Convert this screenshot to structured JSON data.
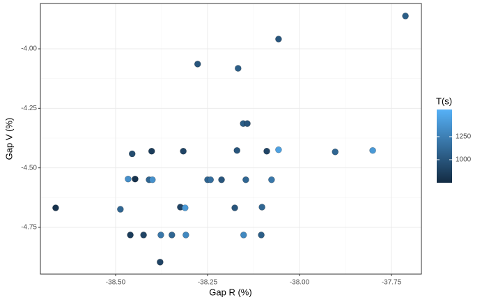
{
  "chart_data": {
    "type": "scatter",
    "x_label": "Gap R (%)",
    "y_label": "Gap V (%)",
    "x": [
      -37.712,
      -38.057,
      -38.277,
      -38.167,
      -38.153,
      -38.142,
      -38.455,
      -38.402,
      -38.316,
      -38.17,
      -38.089,
      -38.057,
      -37.903,
      -37.801,
      -38.466,
      -38.447,
      -38.409,
      -38.4,
      -38.25,
      -38.242,
      -38.212,
      -38.146,
      -38.076,
      -38.663,
      -38.487,
      -38.324,
      -38.311,
      -38.176,
      -38.102,
      -38.46,
      -38.424,
      -38.377,
      -38.347,
      -38.309,
      -38.152,
      -38.104,
      -38.379
    ],
    "values": [
      -3.862,
      -3.959,
      -4.064,
      -4.082,
      -4.314,
      -4.314,
      -4.441,
      -4.43,
      -4.43,
      -4.427,
      -4.43,
      -4.424,
      -4.433,
      -4.427,
      -4.547,
      -4.547,
      -4.55,
      -4.55,
      -4.55,
      -4.55,
      -4.55,
      -4.55,
      -4.55,
      -4.668,
      -4.674,
      -4.665,
      -4.668,
      -4.668,
      -4.665,
      -4.782,
      -4.782,
      -4.782,
      -4.782,
      -4.782,
      -4.782,
      -4.782,
      -4.896
    ],
    "color_values": [
      1050,
      1000,
      1000,
      1050,
      1050,
      1000,
      950,
      850,
      900,
      1000,
      900,
      1450,
      1100,
      1400,
      1350,
      800,
      1100,
      1350,
      1100,
      1150,
      1000,
      1100,
      1200,
      800,
      1100,
      900,
      1400,
      1000,
      1100,
      850,
      900,
      1200,
      1100,
      1300,
      1300,
      1050,
      900
    ],
    "color_title": "T(s)",
    "color_low": "#132b43",
    "color_high": "#56b1f7",
    "color_lim": [
      750,
      1545
    ],
    "color_ticks": [
      1000,
      1250
    ],
    "xlim": [
      -38.7045,
      -37.6686
    ],
    "xticks": [
      {
        "value": -38.5,
        "label": "-38.50"
      },
      {
        "value": -38.25,
        "label": "-38.25"
      },
      {
        "value": -38.0,
        "label": "-38.00"
      },
      {
        "value": -37.75,
        "label": "-37.75"
      }
    ],
    "ylim": [
      -4.9463,
      -3.8096
    ],
    "yticks": [
      {
        "value": -4.75,
        "label": "-4.75"
      },
      {
        "value": -4.5,
        "label": "-4.50"
      },
      {
        "value": -4.25,
        "label": "-4.25"
      },
      {
        "value": -4.0,
        "label": "-4.00"
      }
    ],
    "grid": true
  }
}
